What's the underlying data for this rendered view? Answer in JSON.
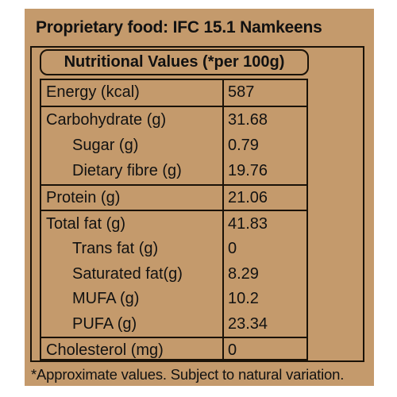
{
  "title": "Proprietary food: IFC 15.1 Namkeens",
  "table_header": "Nutritional Values (*per 100g)",
  "rows": [
    {
      "label": "Energy (kcal)",
      "value": "587"
    },
    {
      "label": "Carbohydrate (g)",
      "value": "31.68"
    },
    {
      "label": "Sugar (g)",
      "value": "0.79"
    },
    {
      "label": "Dietary fibre (g)",
      "value": "19.76"
    },
    {
      "label": "Protein (g)",
      "value": "21.06"
    },
    {
      "label": "Total fat (g)",
      "value": "41.83"
    },
    {
      "label": "Trans fat (g)",
      "value": "0"
    },
    {
      "label": "Saturated fat(g)",
      "value": "8.29"
    },
    {
      "label": "MUFA (g)",
      "value": "10.2"
    },
    {
      "label": "PUFA (g)",
      "value": "23.34"
    },
    {
      "label": "Cholesterol (mg)",
      "value": "0"
    }
  ],
  "footnote": "*Approximate values. Subject to natural variation.",
  "colors": {
    "panel": "#c49a6c",
    "ink": "#1a1208"
  }
}
